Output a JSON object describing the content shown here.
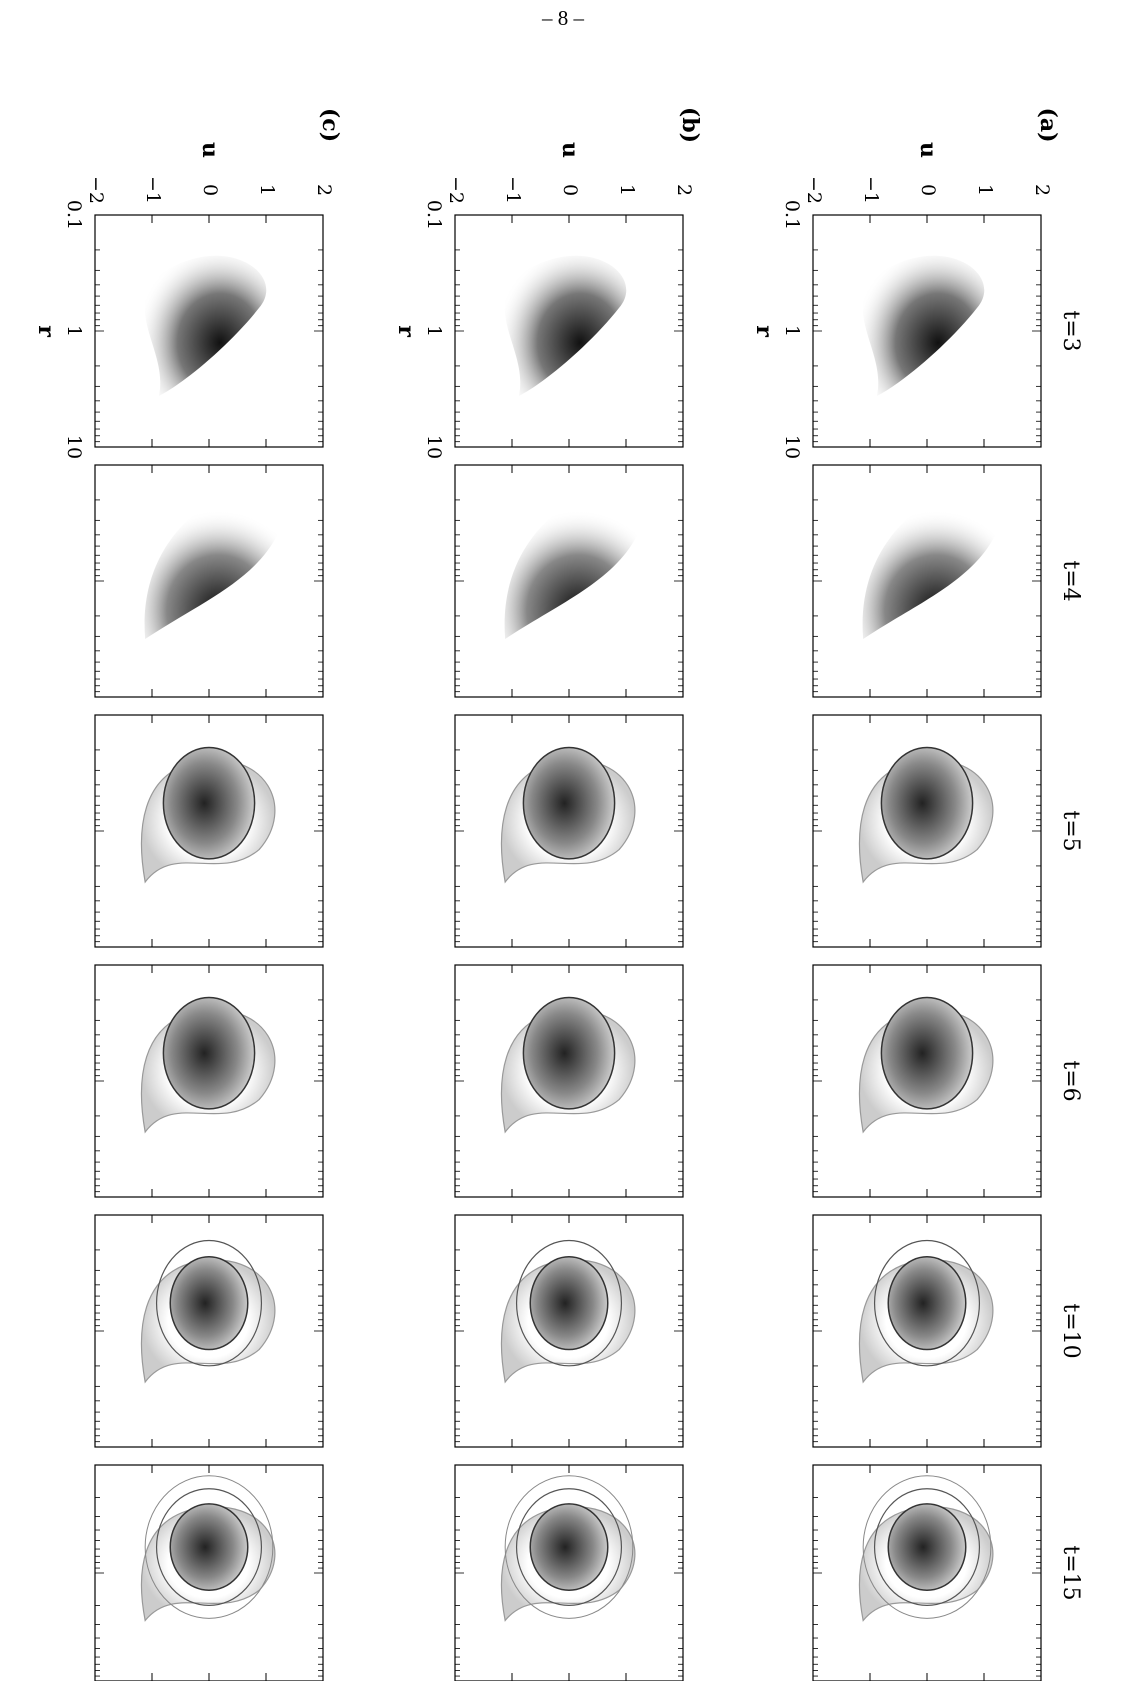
{
  "page_number": "– 8 –",
  "figure": {
    "time_labels": [
      "t=3",
      "t=4",
      "t=5",
      "t=6",
      "t=10",
      "t=15"
    ],
    "rows": [
      {
        "panel_label": "(a)",
        "ylabel": "u",
        "xlabel": "r"
      },
      {
        "panel_label": "(b)",
        "ylabel": "u",
        "xlabel": "r"
      },
      {
        "panel_label": "(c)",
        "ylabel": "u",
        "xlabel": "r"
      }
    ],
    "u_ticks": [
      "2",
      "1",
      "0",
      "−1",
      "−2"
    ],
    "r_ticks": [
      "0.1",
      "1",
      "10"
    ],
    "u_range": [
      -2,
      2
    ],
    "r_range_log": [
      0.1,
      10
    ],
    "colormap": "grayscale (dark = high density)"
  }
}
